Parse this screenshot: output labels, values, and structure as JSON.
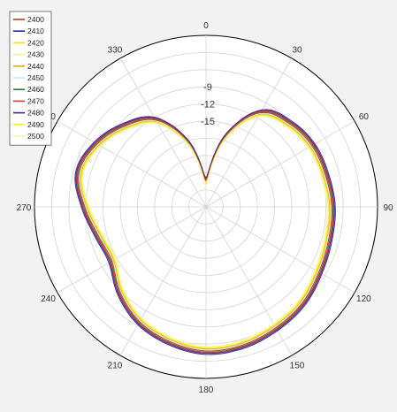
{
  "chart_data": {
    "type": "polar-line",
    "title": "",
    "angular_axis": {
      "direction": "clockwise",
      "zero_at": "top",
      "tick_step_deg": 30,
      "tick_labels": [
        "0",
        "30",
        "60",
        "90",
        "120",
        "150",
        "180",
        "210",
        "240",
        "270",
        "300",
        "330"
      ]
    },
    "radial_axis": {
      "range": [
        -30,
        0
      ],
      "tick_labels": [
        "-9",
        "-12",
        "-15"
      ],
      "tick_label_values": [
        -9,
        -12,
        -15
      ],
      "rings": [
        -3,
        -6,
        -9,
        -12,
        -15,
        -18,
        -21,
        -24,
        -27
      ]
    },
    "legend": {
      "position": "top-left"
    },
    "theta": [
      0,
      15,
      30,
      45,
      60,
      75,
      90,
      105,
      120,
      135,
      150,
      165,
      180,
      195,
      210,
      225,
      240,
      255,
      270,
      285,
      300,
      315,
      330,
      345
    ],
    "base_values": [
      -25.5,
      -17.5,
      -11.0,
      -9.4,
      -8.6,
      -8.4,
      -8.0,
      -7.8,
      -7.2,
      -6.2,
      -5.6,
      -5.0,
      -4.8,
      -5.6,
      -6.8,
      -8.8,
      -11.0,
      -10.5,
      -8.8,
      -7.0,
      -8.0,
      -10.0,
      -12.5,
      -18.5
    ],
    "series": [
      {
        "name": "2400",
        "color": "#c0392b",
        "offset": 0.0
      },
      {
        "name": "2410",
        "color": "#1f2a9a",
        "offset": 0.4
      },
      {
        "name": "2420",
        "color": "#f0e020",
        "offset": -0.3
      },
      {
        "name": "2430",
        "color": "#f5ee9c",
        "offset": -0.6
      },
      {
        "name": "2440",
        "color": "#e0b000",
        "offset": -0.4
      },
      {
        "name": "2450",
        "color": "#cfe5f5",
        "offset": -0.2
      },
      {
        "name": "2460",
        "color": "#2e7d32",
        "offset": 0.2
      },
      {
        "name": "2470",
        "color": "#e53935",
        "offset": 0.3
      },
      {
        "name": "2480",
        "color": "#3b2b90",
        "offset": 0.6
      },
      {
        "name": "2490",
        "color": "#fff200",
        "offset": -0.5
      },
      {
        "name": "2500",
        "color": "#f8f3b0",
        "offset": -0.8
      }
    ]
  }
}
